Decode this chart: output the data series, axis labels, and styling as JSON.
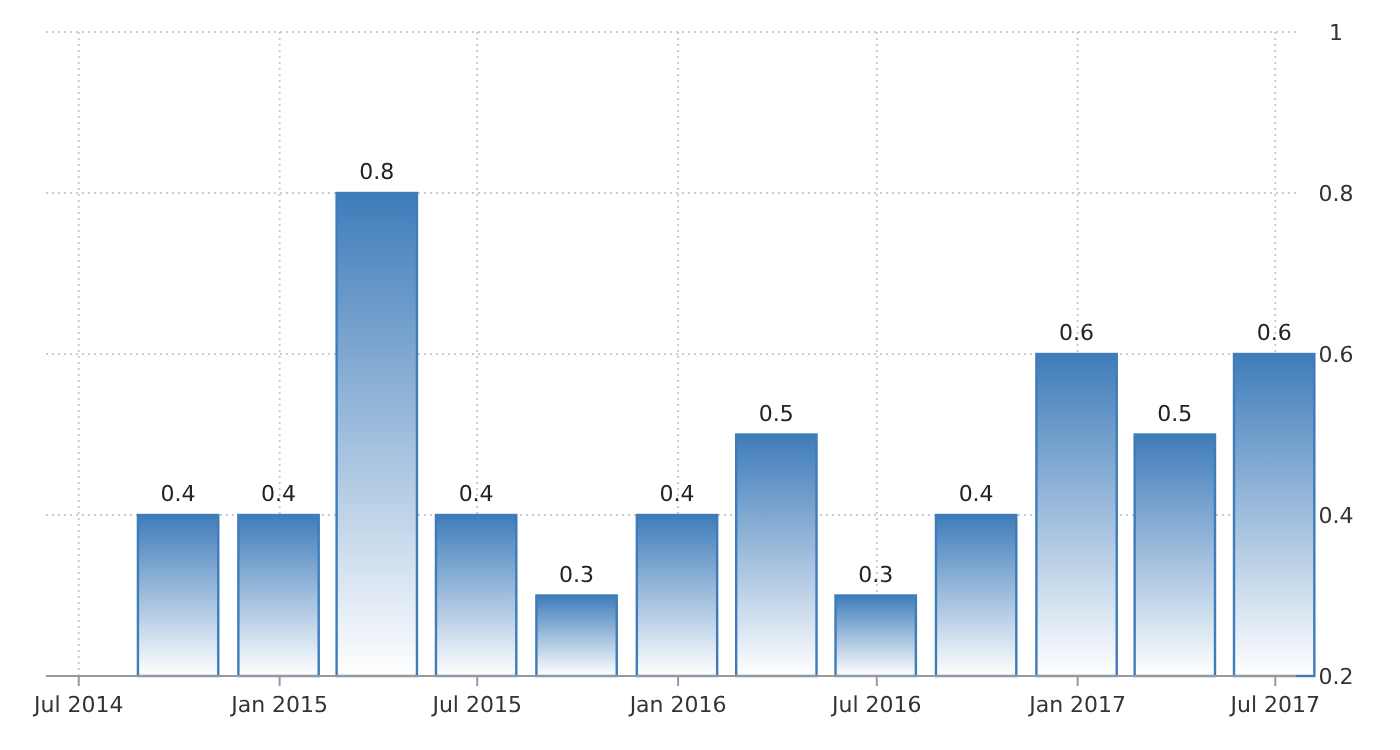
{
  "chart_data": {
    "type": "bar",
    "x": [
      "2014-09-30",
      "2014-12-31",
      "2015-03-31",
      "2015-06-30",
      "2015-09-30",
      "2015-12-31",
      "2016-03-31",
      "2016-06-30",
      "2016-09-30",
      "2016-12-31",
      "2017-03-31",
      "2017-06-30"
    ],
    "values": [
      0.4,
      0.4,
      0.8,
      0.4,
      0.3,
      0.4,
      0.5,
      0.3,
      0.4,
      0.6,
      0.5,
      0.6
    ],
    "color": "#3f7cba",
    "xlim": [
      "2014-06-01",
      "2017-07-20"
    ],
    "xticks": [
      {
        "value": "2014-07-01",
        "label": "Jul 2014"
      },
      {
        "value": "2015-01-01",
        "label": "Jan 2015"
      },
      {
        "value": "2015-07-01",
        "label": "Jul 2015"
      },
      {
        "value": "2016-01-01",
        "label": "Jan 2016"
      },
      {
        "value": "2016-07-01",
        "label": "Jul 2016"
      },
      {
        "value": "2017-01-01",
        "label": "Jan 2017"
      },
      {
        "value": "2017-07-01",
        "label": "Jul 2017"
      }
    ],
    "ylim": [
      0.2,
      1
    ],
    "yticks": [
      0.2,
      0.4,
      0.6,
      0.8,
      1
    ],
    "grid": true,
    "data_labels": true
  }
}
